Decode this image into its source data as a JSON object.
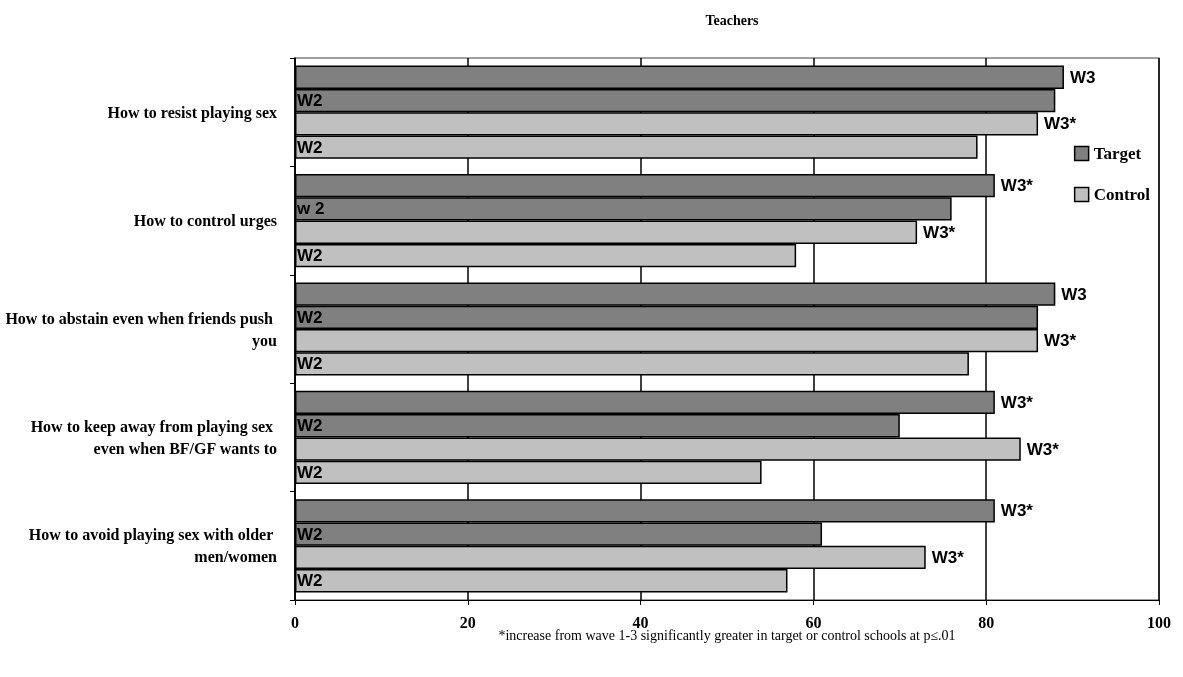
{
  "chart_data": {
    "type": "bar",
    "orientation": "horizontal",
    "title": "Teachers",
    "categories": [
      "How to resist playing sex",
      "How to control urges",
      "How to abstain even when friends push you",
      "How to keep away from playing sex even when BF/GF wants to",
      "How to avoid playing sex with older men/women"
    ],
    "series": [
      {
        "name": "Target",
        "color": "#808080",
        "values": [
          89,
          81,
          88,
          81,
          81
        ],
        "value_labels": [
          "W3",
          "W3*",
          "W3",
          "W3*",
          "W3*"
        ]
      },
      {
        "color": "#808080",
        "values": [
          88,
          76,
          86,
          70,
          61
        ],
        "value_labels": [
          "W2",
          "w 2",
          "W2",
          "W2",
          "W2"
        ]
      },
      {
        "name": "Control",
        "color": "#c0c0c0",
        "values": [
          86,
          72,
          86,
          84,
          73
        ],
        "value_labels": [
          "W3*",
          "W3*",
          "W3*",
          "W3*",
          "W3*"
        ]
      },
      {
        "color": "#c0c0c0",
        "values": [
          79,
          58,
          78,
          54,
          57
        ],
        "value_labels": [
          "W2",
          "W2",
          "W2",
          "W2",
          "W2"
        ]
      }
    ],
    "xlim": [
      0,
      100
    ],
    "xticks": [
      0,
      20,
      40,
      60,
      80,
      100
    ],
    "grid": "x",
    "legend": "right",
    "annotations": [
      "*increase from wave 1-3 significantly greater in target or control schools at p≤.01"
    ]
  }
}
